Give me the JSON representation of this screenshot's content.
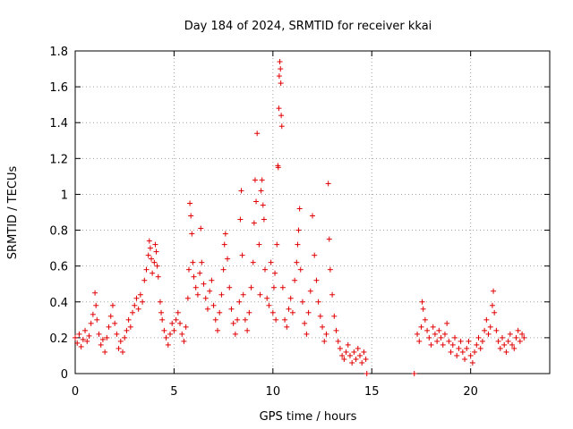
{
  "chart_data": {
    "type": "scatter",
    "title": "Day 184 of 2024, SRMTID for receiver kkai",
    "xlabel": "GPS time / hours",
    "ylabel": "SRMTID / TECUs",
    "xlim": [
      0,
      24
    ],
    "ylim": [
      0,
      1.8
    ],
    "xticks": [
      0,
      5,
      10,
      15,
      20
    ],
    "xtick_labels": [
      "0",
      "5",
      "10",
      "15",
      "20"
    ],
    "yticks": [
      0,
      0.2,
      0.4,
      0.6,
      0.8,
      1.0,
      1.2,
      1.4,
      1.6,
      1.8
    ],
    "ytick_labels": [
      "0",
      "0.2",
      "0.4",
      "0.6",
      "0.8",
      "1",
      "1.2",
      "1.4",
      "1.6",
      "1.8"
    ],
    "grid": true,
    "marker": "+",
    "color": "#e00000",
    "series": [
      {
        "name": "SRMTID",
        "points": [
          [
            0.0,
            0.2
          ],
          [
            0.1,
            0.17
          ],
          [
            0.2,
            0.22
          ],
          [
            0.3,
            0.15
          ],
          [
            0.4,
            0.19
          ],
          [
            0.5,
            0.24
          ],
          [
            0.6,
            0.18
          ],
          [
            0.7,
            0.21
          ],
          [
            0.8,
            0.28
          ],
          [
            0.9,
            0.33
          ],
          [
            1.0,
            0.45
          ],
          [
            1.05,
            0.38
          ],
          [
            1.1,
            0.3
          ],
          [
            1.2,
            0.22
          ],
          [
            1.3,
            0.16
          ],
          [
            1.4,
            0.19
          ],
          [
            1.5,
            0.12
          ],
          [
            1.6,
            0.2
          ],
          [
            1.7,
            0.26
          ],
          [
            1.8,
            0.32
          ],
          [
            1.9,
            0.38
          ],
          [
            2.0,
            0.28
          ],
          [
            2.1,
            0.22
          ],
          [
            2.2,
            0.14
          ],
          [
            2.3,
            0.18
          ],
          [
            2.4,
            0.12
          ],
          [
            2.5,
            0.2
          ],
          [
            2.6,
            0.24
          ],
          [
            2.7,
            0.3
          ],
          [
            2.8,
            0.26
          ],
          [
            2.9,
            0.34
          ],
          [
            3.0,
            0.38
          ],
          [
            3.1,
            0.42
          ],
          [
            3.2,
            0.36
          ],
          [
            3.3,
            0.44
          ],
          [
            3.4,
            0.4
          ],
          [
            3.5,
            0.52
          ],
          [
            3.6,
            0.58
          ],
          [
            3.7,
            0.66
          ],
          [
            3.75,
            0.74
          ],
          [
            3.8,
            0.7
          ],
          [
            3.85,
            0.64
          ],
          [
            3.9,
            0.56
          ],
          [
            4.0,
            0.62
          ],
          [
            4.05,
            0.72
          ],
          [
            4.1,
            0.68
          ],
          [
            4.15,
            0.6
          ],
          [
            4.2,
            0.54
          ],
          [
            4.3,
            0.4
          ],
          [
            4.35,
            0.34
          ],
          [
            4.4,
            0.3
          ],
          [
            4.5,
            0.24
          ],
          [
            4.6,
            0.2
          ],
          [
            4.7,
            0.16
          ],
          [
            4.8,
            0.22
          ],
          [
            4.9,
            0.28
          ],
          [
            5.0,
            0.24
          ],
          [
            5.1,
            0.3
          ],
          [
            5.2,
            0.34
          ],
          [
            5.3,
            0.28
          ],
          [
            5.4,
            0.22
          ],
          [
            5.5,
            0.18
          ],
          [
            5.6,
            0.26
          ],
          [
            5.7,
            0.42
          ],
          [
            5.75,
            0.58
          ],
          [
            5.8,
            0.95
          ],
          [
            5.85,
            0.88
          ],
          [
            5.9,
            0.78
          ],
          [
            5.95,
            0.62
          ],
          [
            6.0,
            0.54
          ],
          [
            6.1,
            0.48
          ],
          [
            6.2,
            0.44
          ],
          [
            6.3,
            0.56
          ],
          [
            6.35,
            0.81
          ],
          [
            6.4,
            0.62
          ],
          [
            6.5,
            0.5
          ],
          [
            6.6,
            0.42
          ],
          [
            6.7,
            0.36
          ],
          [
            6.8,
            0.46
          ],
          [
            6.9,
            0.52
          ],
          [
            7.0,
            0.38
          ],
          [
            7.1,
            0.3
          ],
          [
            7.2,
            0.24
          ],
          [
            7.3,
            0.34
          ],
          [
            7.4,
            0.44
          ],
          [
            7.5,
            0.58
          ],
          [
            7.55,
            0.72
          ],
          [
            7.6,
            0.78
          ],
          [
            7.7,
            0.64
          ],
          [
            7.8,
            0.48
          ],
          [
            7.9,
            0.36
          ],
          [
            8.0,
            0.28
          ],
          [
            8.1,
            0.22
          ],
          [
            8.2,
            0.3
          ],
          [
            8.3,
            0.4
          ],
          [
            8.35,
            0.86
          ],
          [
            8.4,
            1.02
          ],
          [
            8.45,
            0.66
          ],
          [
            8.5,
            0.44
          ],
          [
            8.6,
            0.3
          ],
          [
            8.7,
            0.24
          ],
          [
            8.8,
            0.34
          ],
          [
            8.9,
            0.48
          ],
          [
            9.0,
            0.62
          ],
          [
            9.05,
            0.84
          ],
          [
            9.1,
            1.08
          ],
          [
            9.15,
            0.96
          ],
          [
            9.2,
            1.34
          ],
          [
            9.3,
            0.72
          ],
          [
            9.35,
            0.44
          ],
          [
            9.4,
            1.02
          ],
          [
            9.45,
            1.08
          ],
          [
            9.5,
            0.94
          ],
          [
            9.55,
            0.86
          ],
          [
            9.6,
            0.58
          ],
          [
            9.7,
            0.42
          ],
          [
            9.8,
            0.38
          ],
          [
            9.9,
            0.62
          ],
          [
            10.0,
            0.34
          ],
          [
            10.05,
            0.48
          ],
          [
            10.1,
            0.56
          ],
          [
            10.15,
            0.3
          ],
          [
            10.2,
            0.72
          ],
          [
            10.25,
            1.16
          ],
          [
            10.27,
            1.15
          ],
          [
            10.3,
            1.48
          ],
          [
            10.32,
            1.66
          ],
          [
            10.35,
            1.74
          ],
          [
            10.38,
            1.7
          ],
          [
            10.4,
            1.62
          ],
          [
            10.42,
            1.44
          ],
          [
            10.45,
            1.38
          ],
          [
            10.5,
            0.48
          ],
          [
            10.6,
            0.3
          ],
          [
            10.7,
            0.26
          ],
          [
            10.8,
            0.36
          ],
          [
            10.9,
            0.42
          ],
          [
            11.0,
            0.34
          ],
          [
            11.1,
            0.52
          ],
          [
            11.2,
            0.62
          ],
          [
            11.25,
            0.72
          ],
          [
            11.3,
            0.8
          ],
          [
            11.35,
            0.92
          ],
          [
            11.4,
            0.58
          ],
          [
            11.5,
            0.4
          ],
          [
            11.6,
            0.28
          ],
          [
            11.7,
            0.22
          ],
          [
            11.8,
            0.34
          ],
          [
            11.9,
            0.46
          ],
          [
            12.0,
            0.88
          ],
          [
            12.1,
            0.66
          ],
          [
            12.2,
            0.52
          ],
          [
            12.3,
            0.4
          ],
          [
            12.4,
            0.32
          ],
          [
            12.5,
            0.26
          ],
          [
            12.6,
            0.18
          ],
          [
            12.7,
            0.22
          ],
          [
            12.8,
            1.06
          ],
          [
            12.85,
            0.75
          ],
          [
            12.9,
            0.58
          ],
          [
            13.0,
            0.44
          ],
          [
            13.1,
            0.32
          ],
          [
            13.2,
            0.24
          ],
          [
            13.3,
            0.18
          ],
          [
            13.4,
            0.14
          ],
          [
            13.5,
            0.1
          ],
          [
            13.6,
            0.08
          ],
          [
            13.7,
            0.12
          ],
          [
            13.8,
            0.16
          ],
          [
            13.9,
            0.1
          ],
          [
            14.0,
            0.06
          ],
          [
            14.1,
            0.12
          ],
          [
            14.2,
            0.08
          ],
          [
            14.3,
            0.14
          ],
          [
            14.4,
            0.1
          ],
          [
            14.5,
            0.06
          ],
          [
            14.6,
            0.12
          ],
          [
            14.7,
            0.08
          ],
          [
            14.75,
            0.0
          ],
          [
            17.15,
            0.0
          ],
          [
            17.3,
            0.22
          ],
          [
            17.4,
            0.18
          ],
          [
            17.5,
            0.26
          ],
          [
            17.55,
            0.4
          ],
          [
            17.6,
            0.36
          ],
          [
            17.7,
            0.3
          ],
          [
            17.8,
            0.24
          ],
          [
            17.9,
            0.2
          ],
          [
            18.0,
            0.16
          ],
          [
            18.1,
            0.26
          ],
          [
            18.2,
            0.22
          ],
          [
            18.3,
            0.18
          ],
          [
            18.4,
            0.24
          ],
          [
            18.5,
            0.2
          ],
          [
            18.6,
            0.16
          ],
          [
            18.7,
            0.22
          ],
          [
            18.8,
            0.28
          ],
          [
            18.9,
            0.18
          ],
          [
            19.0,
            0.12
          ],
          [
            19.1,
            0.16
          ],
          [
            19.2,
            0.2
          ],
          [
            19.3,
            0.1
          ],
          [
            19.4,
            0.14
          ],
          [
            19.5,
            0.18
          ],
          [
            19.6,
            0.12
          ],
          [
            19.7,
            0.08
          ],
          [
            19.8,
            0.14
          ],
          [
            19.9,
            0.18
          ],
          [
            20.0,
            0.1
          ],
          [
            20.1,
            0.06
          ],
          [
            20.2,
            0.12
          ],
          [
            20.3,
            0.16
          ],
          [
            20.4,
            0.2
          ],
          [
            20.5,
            0.14
          ],
          [
            20.6,
            0.18
          ],
          [
            20.7,
            0.24
          ],
          [
            20.8,
            0.3
          ],
          [
            20.9,
            0.22
          ],
          [
            21.0,
            0.26
          ],
          [
            21.1,
            0.38
          ],
          [
            21.15,
            0.46
          ],
          [
            21.2,
            0.34
          ],
          [
            21.3,
            0.24
          ],
          [
            21.4,
            0.18
          ],
          [
            21.5,
            0.14
          ],
          [
            21.6,
            0.2
          ],
          [
            21.7,
            0.16
          ],
          [
            21.8,
            0.12
          ],
          [
            21.9,
            0.18
          ],
          [
            22.0,
            0.22
          ],
          [
            22.1,
            0.16
          ],
          [
            22.2,
            0.14
          ],
          [
            22.3,
            0.2
          ],
          [
            22.4,
            0.24
          ],
          [
            22.5,
            0.18
          ],
          [
            22.6,
            0.22
          ],
          [
            22.7,
            0.2
          ]
        ]
      }
    ]
  }
}
